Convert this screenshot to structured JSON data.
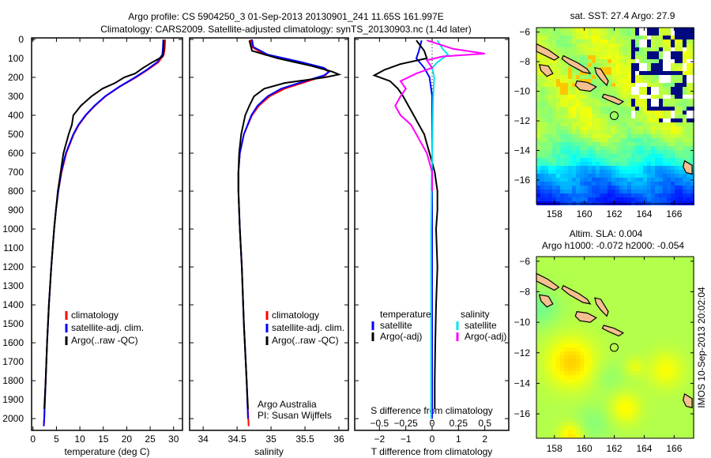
{
  "title_line1": "Argo profile: CS 5904250_3 01-Sep-2013 20130901_241 11.65S 161.997E",
  "title_line2": "Climatology: CARS2009. Satellite-adjusted climatology: synTS_20130903.nc (1.4d later)",
  "colors": {
    "climatology": "#ff0000",
    "satellite": "#0000ff",
    "argo": "#000000",
    "sal_satellite": "#00e5ee",
    "sal_argo": "#ff00ff"
  },
  "chart_data": [
    {
      "type": "line",
      "name": "temperature-profile",
      "xlabel": "temperature (deg C)",
      "ylabel": "",
      "xlim": [
        -0.3,
        31.9
      ],
      "ylim": [
        2062,
        -8
      ],
      "xticks": [
        0,
        5,
        10,
        15,
        20,
        25,
        30
      ],
      "yticks": [
        0,
        100,
        200,
        300,
        400,
        500,
        600,
        700,
        800,
        900,
        1000,
        1100,
        1200,
        1300,
        1400,
        1500,
        1600,
        1700,
        1800,
        1900,
        2000
      ],
      "legend": [
        "climatology",
        "satellite-adj. clim.",
        "Argo(..raw -QC)"
      ],
      "series": [
        {
          "name": "climatology",
          "color": "#ff0000",
          "points": [
            [
              0,
              28.2
            ],
            [
              50,
              28.1
            ],
            [
              80,
              27.9
            ],
            [
              120,
              26.8
            ],
            [
              160,
              24.5
            ],
            [
              200,
              22
            ],
            [
              250,
              18.5
            ],
            [
              300,
              15.5
            ],
            [
              350,
              13.2
            ],
            [
              400,
              11.3
            ],
            [
              450,
              9.8
            ],
            [
              500,
              8.7
            ],
            [
              600,
              7.1
            ],
            [
              700,
              6.1
            ],
            [
              800,
              5.4
            ],
            [
              900,
              4.9
            ],
            [
              1000,
              4.5
            ],
            [
              1200,
              3.9
            ],
            [
              1400,
              3.4
            ],
            [
              1600,
              3.0
            ],
            [
              1800,
              2.7
            ],
            [
              2000,
              2.4
            ],
            [
              2040,
              2.3
            ]
          ]
        },
        {
          "name": "satellite-adj. clim.",
          "color": "#0000ff",
          "points": [
            [
              0,
              27.8
            ],
            [
              50,
              27.7
            ],
            [
              80,
              27.6
            ],
            [
              120,
              26.5
            ],
            [
              160,
              24.3
            ],
            [
              200,
              21.8
            ],
            [
              250,
              18.4
            ],
            [
              300,
              15.4
            ],
            [
              350,
              13.1
            ],
            [
              400,
              11.2
            ],
            [
              450,
              9.7
            ],
            [
              500,
              8.6
            ],
            [
              600,
              7.0
            ],
            [
              700,
              6.0
            ],
            [
              800,
              5.4
            ],
            [
              900,
              4.9
            ],
            [
              1000,
              4.5
            ],
            [
              1200,
              3.9
            ],
            [
              1400,
              3.4
            ],
            [
              1600,
              3.0
            ],
            [
              1800,
              2.7
            ],
            [
              2000,
              2.4
            ],
            [
              2040,
              2.3
            ]
          ]
        },
        {
          "name": "Argo(..raw -QC)",
          "color": "#000000",
          "points": [
            [
              5,
              27.9
            ],
            [
              50,
              27.9
            ],
            [
              90,
              27.7
            ],
            [
              120,
              25.5
            ],
            [
              150,
              23.5
            ],
            [
              180,
              21.8
            ],
            [
              200,
              19.5
            ],
            [
              230,
              17.5
            ],
            [
              260,
              14.8
            ],
            [
              300,
              12.5
            ],
            [
              350,
              10.2
            ],
            [
              400,
              8.6
            ],
            [
              450,
              8.3
            ],
            [
              500,
              7.6
            ],
            [
              600,
              6.5
            ],
            [
              700,
              5.9
            ],
            [
              800,
              5.3
            ],
            [
              900,
              4.9
            ],
            [
              1000,
              4.5
            ],
            [
              1200,
              3.9
            ],
            [
              1400,
              3.4
            ],
            [
              1600,
              3.0
            ],
            [
              1800,
              2.7
            ],
            [
              1950,
              2.4
            ]
          ]
        }
      ]
    },
    {
      "type": "line",
      "name": "salinity-profile",
      "xlabel": "salinity",
      "xlim": [
        33.8,
        36.14
      ],
      "ylim": [
        2062,
        -8
      ],
      "xticks": [
        34,
        34.5,
        35,
        35.5,
        36
      ],
      "legend": [
        "climatology",
        "satellite-adj. clim.",
        "Argo(..raw -QC)"
      ],
      "annotation": [
        "Argo Australia",
        "PI: Susan Wijffels"
      ],
      "series": [
        {
          "name": "climatology",
          "color": "#ff0000",
          "points": [
            [
              0,
              34.7
            ],
            [
              40,
              34.72
            ],
            [
              80,
              34.9
            ],
            [
              120,
              35.4
            ],
            [
              150,
              35.75
            ],
            [
              170,
              35.85
            ],
            [
              190,
              35.8
            ],
            [
              220,
              35.55
            ],
            [
              260,
              35.2
            ],
            [
              300,
              34.98
            ],
            [
              350,
              34.82
            ],
            [
              400,
              34.72
            ],
            [
              500,
              34.6
            ],
            [
              600,
              34.54
            ],
            [
              700,
              34.52
            ],
            [
              800,
              34.52
            ],
            [
              1000,
              34.54
            ],
            [
              1200,
              34.57
            ],
            [
              1500,
              34.6
            ],
            [
              1800,
              34.64
            ],
            [
              2040,
              34.67
            ]
          ]
        },
        {
          "name": "satellite-adj. clim.",
          "color": "#0000ff",
          "points": [
            [
              0,
              34.72
            ],
            [
              40,
              34.74
            ],
            [
              80,
              34.95
            ],
            [
              120,
              35.45
            ],
            [
              150,
              35.78
            ],
            [
              170,
              35.86
            ],
            [
              190,
              35.78
            ],
            [
              220,
              35.5
            ],
            [
              260,
              35.15
            ],
            [
              300,
              34.95
            ],
            [
              350,
              34.8
            ],
            [
              400,
              34.71
            ],
            [
              500,
              34.6
            ],
            [
              600,
              34.54
            ],
            [
              700,
              34.52
            ],
            [
              800,
              34.52
            ],
            [
              1000,
              34.54
            ],
            [
              1200,
              34.57
            ],
            [
              1500,
              34.6
            ],
            [
              1800,
              34.64
            ],
            [
              2000,
              34.66
            ]
          ]
        },
        {
          "name": "Argo(..raw -QC)",
          "color": "#000000",
          "points": [
            [
              5,
              34.68
            ],
            [
              60,
              34.72
            ],
            [
              100,
              35.1
            ],
            [
              140,
              35.6
            ],
            [
              170,
              35.9
            ],
            [
              185,
              36.0
            ],
            [
              200,
              35.8
            ],
            [
              230,
              35.2
            ],
            [
              260,
              34.9
            ],
            [
              300,
              34.75
            ],
            [
              350,
              34.68
            ],
            [
              400,
              34.62
            ],
            [
              500,
              34.56
            ],
            [
              600,
              34.53
            ],
            [
              700,
              34.52
            ],
            [
              800,
              34.52
            ],
            [
              1000,
              34.54
            ],
            [
              1200,
              34.57
            ],
            [
              1500,
              34.6
            ],
            [
              1800,
              34.64
            ],
            [
              1950,
              34.66
            ]
          ]
        }
      ]
    },
    {
      "type": "line",
      "name": "difference-profile",
      "xlabel": "T difference from climatology",
      "xlabel_top": "S difference from climatology",
      "xlim": [
        -2.94,
        2.91
      ],
      "ylim": [
        2062,
        -8
      ],
      "xticks": [
        -2,
        -1,
        0,
        1,
        2
      ],
      "xticks_top": [
        -0.5,
        -0.25,
        0,
        0.25,
        0.5
      ],
      "legend_temperature": {
        "title": "temperature",
        "items": [
          "satellite",
          "Argo(-adj)"
        ]
      },
      "legend_salinity": {
        "title": "salinity",
        "items": [
          "satellite",
          "Argo(-adj)"
        ]
      },
      "series": [
        {
          "name": "temperature satellite",
          "color": "#0000ff",
          "units": "degC",
          "points": [
            [
              5,
              -0.4
            ],
            [
              60,
              -0.5
            ],
            [
              100,
              -0.6
            ],
            [
              150,
              -0.3
            ],
            [
              200,
              -0.1
            ],
            [
              300,
              0
            ],
            [
              600,
              0
            ],
            [
              1000,
              0
            ],
            [
              2000,
              0
            ]
          ]
        },
        {
          "name": "temperature Argo(-adj)",
          "color": "#000000",
          "units": "degC",
          "points": [
            [
              5,
              -0.6
            ],
            [
              60,
              -0.3
            ],
            [
              100,
              -0.2
            ],
            [
              130,
              -1.2
            ],
            [
              160,
              -1.8
            ],
            [
              190,
              -2.2
            ],
            [
              220,
              -1.6
            ],
            [
              260,
              -1.3
            ],
            [
              300,
              -1.1
            ],
            [
              350,
              -0.9
            ],
            [
              400,
              -0.7
            ],
            [
              450,
              -0.5
            ],
            [
              500,
              -0.3
            ],
            [
              550,
              -0.2
            ],
            [
              600,
              -0.1
            ],
            [
              700,
              0.1
            ],
            [
              800,
              0.2
            ],
            [
              900,
              0.2
            ],
            [
              1000,
              0.15
            ],
            [
              1200,
              0.2
            ],
            [
              1400,
              0.15
            ],
            [
              1600,
              0.12
            ],
            [
              1800,
              0.1
            ],
            [
              1950,
              0.1
            ]
          ]
        },
        {
          "name": "salinity satellite",
          "color": "#00e5ee",
          "units": "psu",
          "points": [
            [
              5,
              0.05
            ],
            [
              50,
              0.1
            ],
            [
              80,
              0.15
            ],
            [
              120,
              0.05
            ],
            [
              150,
              0
            ],
            [
              200,
              0.02
            ],
            [
              300,
              0.01
            ],
            [
              600,
              0
            ],
            [
              1000,
              -0.01
            ],
            [
              2000,
              -0.01
            ]
          ]
        },
        {
          "name": "salinity Argo(-adj)",
          "color": "#ff00ff",
          "units": "psu",
          "points": [
            [
              5,
              -0.05
            ],
            [
              50,
              0.2
            ],
            [
              75,
              0.5
            ],
            [
              90,
              0.1
            ],
            [
              110,
              -0.05
            ],
            [
              150,
              0.0
            ],
            [
              180,
              -0.15
            ],
            [
              220,
              -0.3
            ],
            [
              260,
              -0.25
            ],
            [
              300,
              -0.3
            ],
            [
              350,
              -0.35
            ],
            [
              400,
              -0.3
            ],
            [
              450,
              -0.2
            ],
            [
              500,
              -0.15
            ],
            [
              600,
              -0.05
            ],
            [
              700,
              0.0
            ],
            [
              800,
              0
            ]
          ]
        }
      ]
    },
    {
      "type": "heatmap",
      "name": "sst-map",
      "title": "sat. SST: 27.4 Argo: 27.9",
      "xlim": [
        156.8,
        167.3
      ],
      "ylim": [
        -17.6,
        -5.7
      ],
      "xticks": [
        158,
        160,
        162,
        164,
        166
      ],
      "yticks": [
        -6,
        -8,
        -10,
        -12,
        -14,
        -16
      ],
      "marker": {
        "lon": 161.997,
        "lat": -11.65
      }
    },
    {
      "type": "heatmap",
      "name": "sla-map",
      "title": "Altim. SLA: 0.004",
      "subtitle": "Argo h1000: -0.072 h2000: -0.054",
      "xlim": [
        156.8,
        167.3
      ],
      "ylim": [
        -17.6,
        -5.7
      ],
      "xticks": [
        158,
        160,
        162,
        164,
        166
      ],
      "yticks": [
        -6,
        -8,
        -10,
        -12,
        -14,
        -16
      ],
      "marker": {
        "lon": 161.997,
        "lat": -11.65
      }
    }
  ],
  "footer_stamp": "IMOS 10-Sep-2013 20:02:04"
}
